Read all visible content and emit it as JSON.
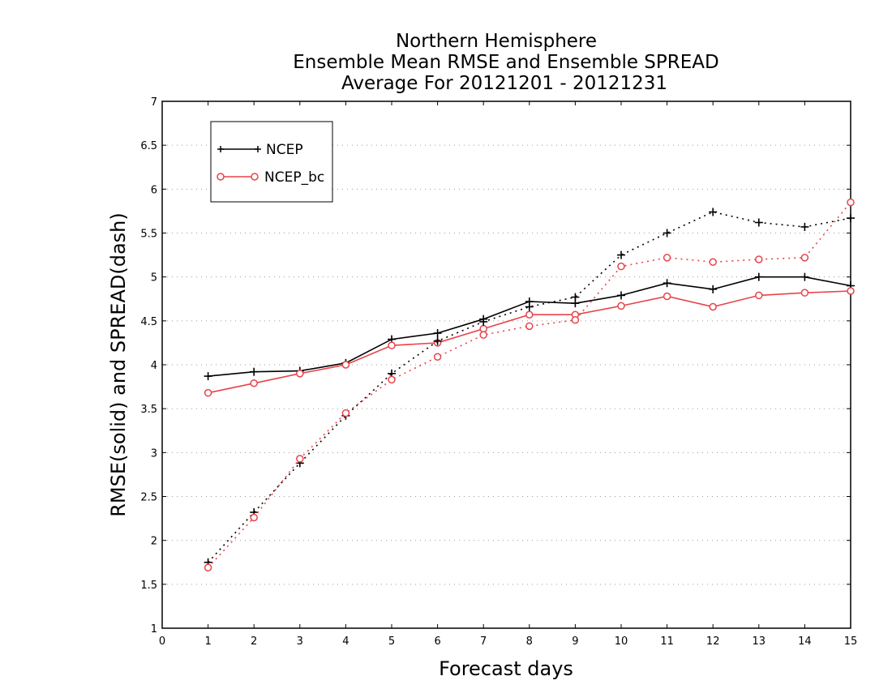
{
  "chart_data": {
    "type": "line",
    "title_lines": [
      "Northern Hemisphere",
      "Ensemble Mean RMSE and Ensemble SPREAD",
      "Average For 20121201 - 20121231"
    ],
    "xlabel": "Forecast days",
    "ylabel": "RMSE(solid) and SPREAD(dash)",
    "xlim": [
      0,
      15
    ],
    "ylim": [
      1,
      7
    ],
    "xticks": [
      "0",
      "1",
      "2",
      "3",
      "4",
      "5",
      "6",
      "7",
      "8",
      "9",
      "10",
      "11",
      "12",
      "13",
      "14",
      "15"
    ],
    "yticks": [
      "1",
      "1.5",
      "2",
      "2.5",
      "3",
      "3.5",
      "4",
      "4.5",
      "5",
      "5.5",
      "6",
      "6.5",
      "7"
    ],
    "grid": true,
    "legend_position": "top-left",
    "x": [
      1,
      2,
      3,
      4,
      5,
      6,
      7,
      8,
      9,
      10,
      11,
      12,
      13,
      14,
      15
    ],
    "series": [
      {
        "name": "NCEP",
        "metric": "RMSE",
        "style": "solid",
        "marker": "plus",
        "color": "#000000",
        "values": [
          3.87,
          3.92,
          3.93,
          4.02,
          4.29,
          4.36,
          4.52,
          4.72,
          4.7,
          4.79,
          4.93,
          4.86,
          5.0,
          5.0,
          4.9
        ]
      },
      {
        "name": "NCEP_bc",
        "metric": "RMSE",
        "style": "solid",
        "marker": "circle",
        "color": "#e8434a",
        "values": [
          3.68,
          3.79,
          3.9,
          4.0,
          4.22,
          4.25,
          4.41,
          4.57,
          4.57,
          4.67,
          4.78,
          4.66,
          4.79,
          4.82,
          4.84
        ]
      },
      {
        "name": "NCEP",
        "metric": "SPREAD",
        "style": "dash",
        "marker": "plus",
        "color": "#000000",
        "values": [
          1.75,
          2.32,
          2.88,
          3.42,
          3.9,
          4.27,
          4.49,
          4.66,
          4.77,
          5.25,
          5.5,
          5.74,
          5.62,
          5.57,
          5.67
        ]
      },
      {
        "name": "NCEP_bc",
        "metric": "SPREAD",
        "style": "dash",
        "marker": "circle",
        "color": "#e8434a",
        "values": [
          1.69,
          2.26,
          2.93,
          3.45,
          3.83,
          4.09,
          4.34,
          4.44,
          4.51,
          5.12,
          5.22,
          5.17,
          5.2,
          5.22,
          5.85
        ]
      }
    ],
    "legend": [
      {
        "label": "NCEP",
        "marker": "plus",
        "color": "#000000"
      },
      {
        "label": "NCEP_bc",
        "marker": "circle",
        "color": "#e8434a"
      }
    ]
  }
}
